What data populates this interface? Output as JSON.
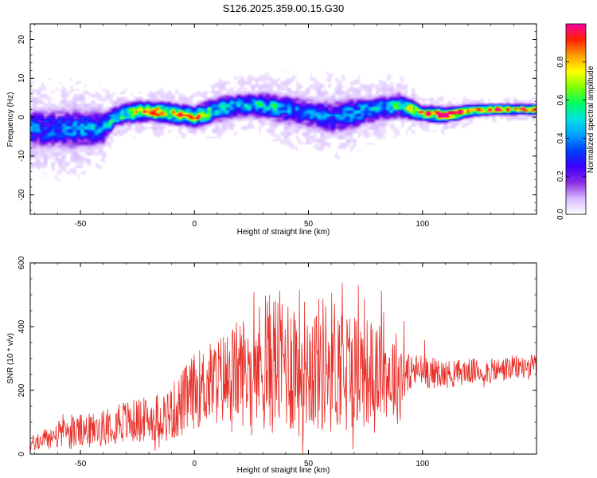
{
  "title": "S126.2025.359.00.15.G30",
  "chart_data": [
    {
      "type": "heatmap",
      "xlabel": "Height of straight line (km)",
      "ylabel": "Frequency (Hz)",
      "xlim": [
        -72,
        150
      ],
      "ylim": [
        -25,
        24
      ],
      "xticks": [
        -50,
        0,
        50,
        100
      ],
      "yticks": [
        -20,
        -10,
        0,
        10,
        20
      ],
      "grid": false,
      "colorbar": {
        "label": "Normalized spectral amplitude",
        "range": [
          0,
          1
        ],
        "ticks": [
          0.0,
          0.2,
          0.4,
          0.6,
          0.8
        ],
        "tick_labels": [
          "0.0",
          "0.2",
          "0.4",
          "0.6",
          "0.8"
        ],
        "colormap": [
          "#ffffff",
          "#d8b8ff",
          "#8a2be2",
          "#3a00ff",
          "#0040ff",
          "#00a0ff",
          "#00e0e0",
          "#00ff60",
          "#80ff00",
          "#ffff00",
          "#ffa000",
          "#ff2000",
          "#ff00a0"
        ]
      },
      "ridge": {
        "x": [
          -72,
          -60,
          -50,
          -40,
          -35,
          -30,
          -20,
          -10,
          0,
          10,
          20,
          30,
          40,
          50,
          60,
          70,
          80,
          90,
          100,
          110,
          120,
          130,
          140,
          150
        ],
        "y": [
          -3,
          -3,
          -3,
          -3,
          0,
          1,
          1.5,
          1,
          0,
          2,
          3,
          3,
          2,
          1,
          0,
          1,
          2,
          3,
          1,
          0.5,
          1.5,
          2,
          2,
          2
        ],
        "width": [
          4,
          4,
          4,
          3.5,
          2,
          2,
          2,
          2,
          2,
          2.5,
          2.5,
          2.5,
          3,
          3,
          3.5,
          3,
          2.5,
          2.5,
          1.5,
          1.5,
          1.2,
          1,
          1,
          1
        ],
        "peak": [
          0.35,
          0.35,
          0.4,
          0.4,
          0.55,
          0.7,
          0.8,
          0.75,
          0.85,
          0.5,
          0.45,
          0.5,
          0.4,
          0.35,
          0.35,
          0.45,
          0.45,
          0.5,
          0.95,
          0.9,
          0.85,
          0.9,
          0.95,
          0.95
        ]
      }
    },
    {
      "type": "line",
      "xlabel": "Height of straight line (km)",
      "ylabel": "SNR (10 * v/v)",
      "xlim": [
        -72,
        150
      ],
      "ylim": [
        0,
        600
      ],
      "xticks": [
        -50,
        0,
        50,
        100
      ],
      "yticks": [
        0,
        200,
        400,
        600
      ],
      "grid": false,
      "series": [
        {
          "color": "#e8302a",
          "envelope": {
            "x": [
              -72,
              -60,
              -50,
              -40,
              -35,
              -30,
              -20,
              -10,
              -5,
              0,
              10,
              20,
              30,
              35,
              40,
              45,
              50,
              55,
              60,
              65,
              70,
              75,
              80,
              85,
              90,
              95,
              100,
              110,
              120,
              130,
              140,
              150
            ],
            "mean": [
              30,
              60,
              70,
              80,
              110,
              100,
              110,
              130,
              160,
              200,
              230,
              260,
              280,
              290,
              290,
              290,
              280,
              280,
              290,
              280,
              270,
              260,
              260,
              250,
              240,
              260,
              260,
              250,
              260,
              260,
              270,
              275
            ],
            "amplitude": [
              25,
              45,
              55,
              55,
              70,
              70,
              70,
              90,
              110,
              120,
              140,
              170,
              210,
              230,
              220,
              250,
              200,
              220,
              230,
              200,
              190,
              180,
              150,
              140,
              150,
              60,
              55,
              45,
              40,
              40,
              40,
              40
            ]
          }
        }
      ]
    }
  ]
}
